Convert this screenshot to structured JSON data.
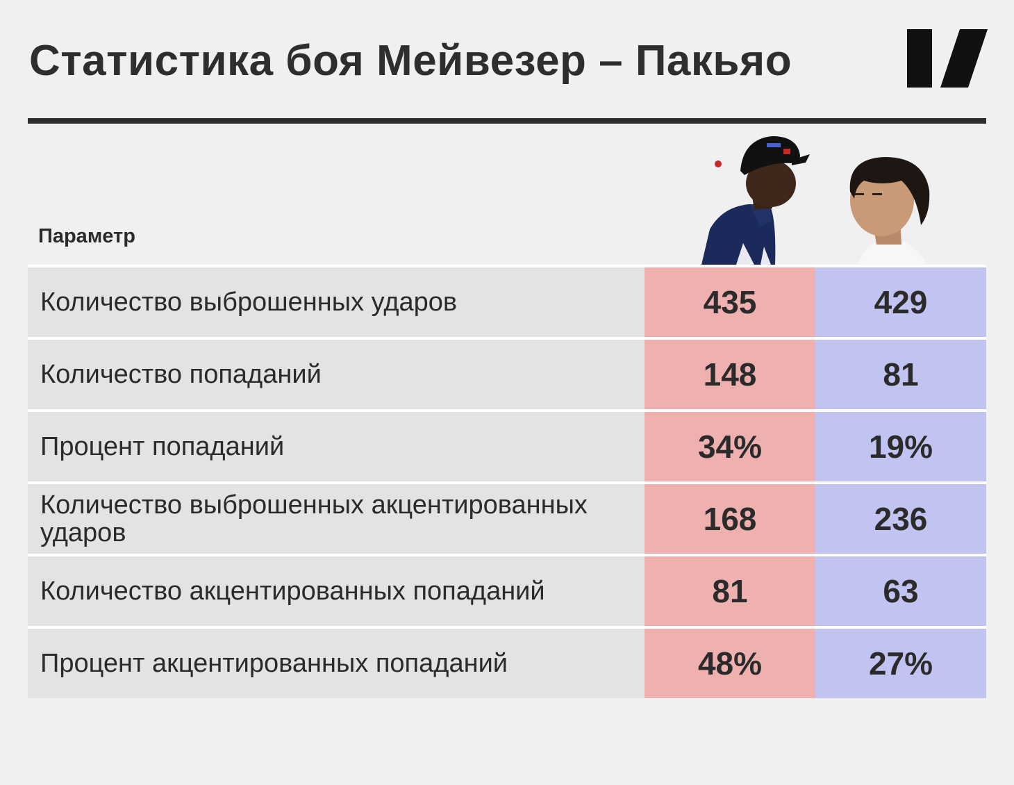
{
  "title": "Статистика боя Мейвезер – Пакьяо",
  "param_header": "Параметр",
  "colors": {
    "mayweather_column": "#efb0b0",
    "pacquiao_column": "#c1c3f0",
    "label_column": "#e3e3e3",
    "text": "#2b2b2b"
  },
  "chart_data": {
    "type": "table",
    "columns": [
      "Параметр",
      "",
      ""
    ],
    "rows": [
      {
        "label": "Количество выброшенных ударов",
        "mayweather": "435",
        "pacquiao": "429"
      },
      {
        "label": "Количество попаданий",
        "mayweather": "148",
        "pacquiao": "81"
      },
      {
        "label": "Процент попаданий",
        "mayweather": "34%",
        "pacquiao": "19%"
      },
      {
        "label": "Количество выброшенных акцентированных ударов",
        "mayweather": "168",
        "pacquiao": "236"
      },
      {
        "label": "Количество акцентированных попаданий",
        "mayweather": "81",
        "pacquiao": "63"
      },
      {
        "label": "Процент акцентированных попаданий",
        "mayweather": "48%",
        "pacquiao": "27%"
      }
    ]
  }
}
